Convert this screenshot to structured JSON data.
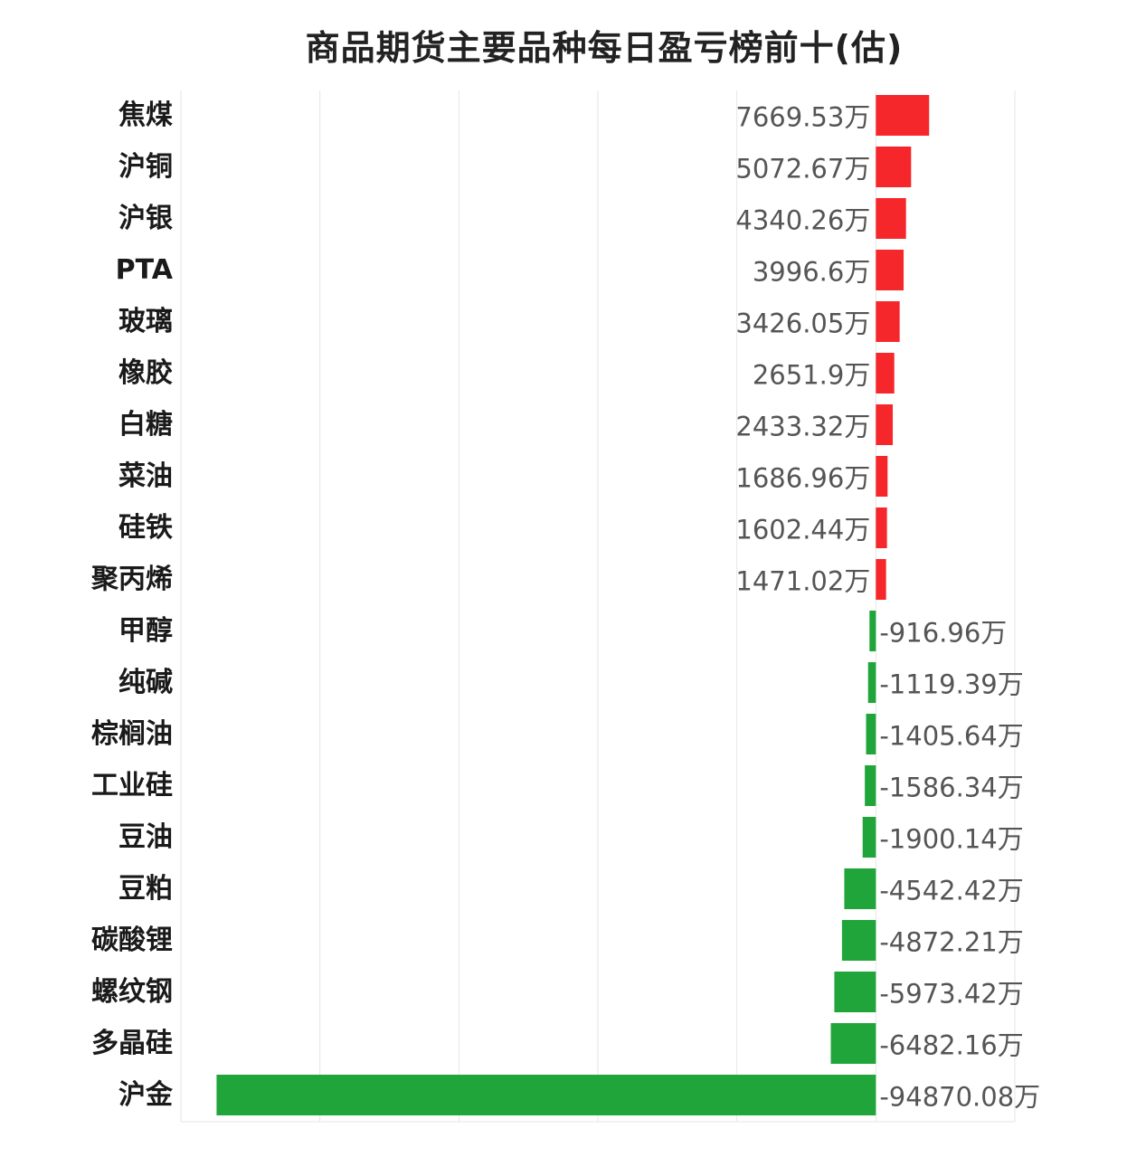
{
  "chart_data": {
    "type": "bar",
    "orientation": "horizontal",
    "title": "商品期货主要品种每日盈亏榜前十(估)",
    "unit": "万",
    "categories": [
      "焦煤",
      "沪铜",
      "沪银",
      "PTA",
      "玻璃",
      "橡胶",
      "白糖",
      "菜油",
      "硅铁",
      "聚丙烯",
      "甲醇",
      "纯碱",
      "棕榈油",
      "工业硅",
      "豆油",
      "豆粕",
      "碳酸锂",
      "螺纹钢",
      "多晶硅",
      "沪金"
    ],
    "values": [
      7669.53,
      5072.67,
      4340.26,
      3996.6,
      3426.05,
      2651.9,
      2433.32,
      1686.96,
      1602.44,
      1471.02,
      -916.96,
      -1119.39,
      -1405.64,
      -1586.34,
      -1900.14,
      -4542.42,
      -4872.21,
      -5973.42,
      -6482.16,
      -94870.08
    ],
    "value_labels": [
      "7669.53万",
      "5072.67万",
      "4340.26万",
      "3996.6万",
      "3426.05万",
      "2651.9万",
      "2433.32万",
      "1686.96万",
      "1602.44万",
      "1471.02万",
      "-916.96万",
      "-1119.39万",
      "-1405.64万",
      "-1586.34万",
      "-1900.14万",
      "-4542.42万",
      "-4872.21万",
      "-5973.42万",
      "-6482.16万",
      "-94870.08万"
    ],
    "xlim": [
      -100000,
      20000
    ],
    "grid": true,
    "colors": {
      "positive": "#f5272a",
      "negative": "#20a53a"
    }
  }
}
